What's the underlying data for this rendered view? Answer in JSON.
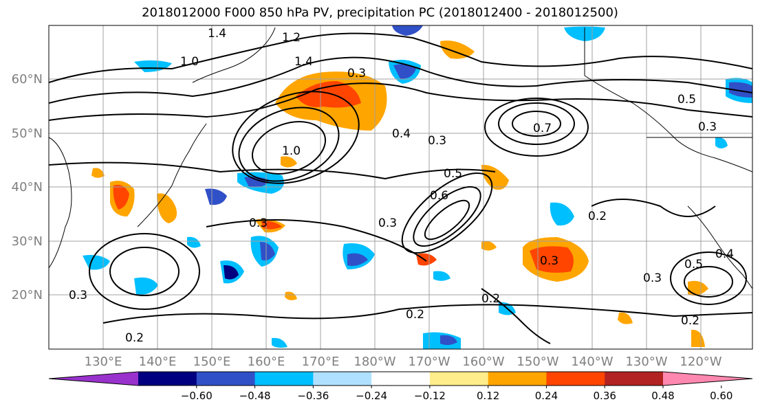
{
  "title": "2018012000 F000 850 hPa PV, precipitation PC (2018012400 - 2018012500)",
  "lat_labels": [
    "60°N",
    "50°N",
    "40°N",
    "30°N",
    "20°N"
  ],
  "lon_labels": [
    "130°E",
    "140°E",
    "150°E",
    "160°E",
    "170°E",
    "180°W",
    "170°W",
    "160°W",
    "150°W",
    "140°W",
    "130°W",
    "120°W"
  ],
  "colorbar": {
    "ticks": [
      "−0.60",
      "−0.48",
      "−0.36",
      "−0.24",
      "−0.12",
      "0.12",
      "0.24",
      "0.36",
      "0.48",
      "0.60"
    ],
    "colors": [
      "#9932cc",
      "#000080",
      "#3050c8",
      "#00bfff",
      "#b0e0ff",
      "#ffffff",
      "#ffec8b",
      "#ffa500",
      "#ff4500",
      "#b22222",
      "#ff88b0"
    ]
  },
  "contour_labels": [
    "1.4",
    "1.2",
    "1.0",
    "1.4",
    "0.3",
    "1.0",
    "0.5",
    "0.4",
    "0.3",
    "0.7",
    "0.5",
    "0.3",
    "0.6",
    "0.3",
    "0.2",
    "0.3",
    "0.3",
    "0.2",
    "0.2",
    "0.5",
    "0.4",
    "0.3",
    "0.2",
    "0.3",
    "0.2"
  ],
  "map_colors": {
    "coast": "#000000",
    "grid": "#a0a0a0",
    "contour": "#000000"
  }
}
